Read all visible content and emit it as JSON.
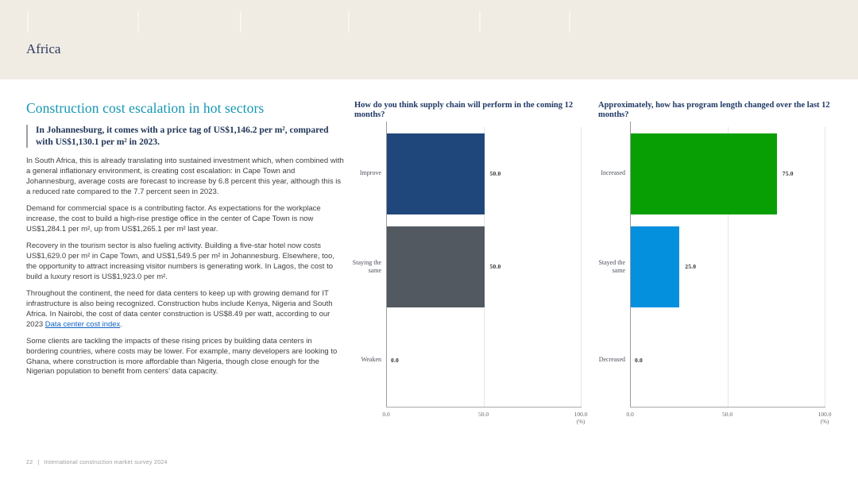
{
  "header": {
    "region_title": "Africa"
  },
  "article": {
    "title": "Construction cost escalation in hot sectors",
    "callout": "In Johannesburg, it comes with a price tag of US$1,146.2 per m², compared with US$1,130.1 per m² in 2023.",
    "p1": "In South Africa, this is already translating into sustained investment which, when combined with a general inflationary environment, is creating cost escalation: in Cape Town and Johannesburg, average costs are forecast to increase by 6.8 percent this year, although this is a reduced rate compared to the 7.7 percent seen in 2023.",
    "p2": "Demand for commercial space is a contributing factor. As expectations for the workplace increase, the cost to build a high-rise prestige office in the center of Cape Town is now US$1,284.1 per m², up from US$1,265.1 per m² last year.",
    "p3": "Recovery in the tourism sector is also fueling activity. Building a five-star hotel now costs US$1,629.0 per m² in Cape Town, and US$1,549.5 per m² in Johannesburg. Elsewhere, too, the opportunity to attract increasing visitor numbers is generating work. In Lagos, the cost to build a luxury resort is US$1,923.0 per m².",
    "p4_pre": "Throughout the continent, the need for data centers to keep up with growing demand for IT infrastructure is also being recognized. Construction hubs include Kenya, Nigeria and South Africa. In Nairobi, the cost of data center construction is US$8.49 per watt, according to our 2023 ",
    "p4_link": "Data center cost index",
    "p4_post": ".",
    "p5": "Some clients are tackling the impacts of these rising prices by building data centers in bordering countries, where costs may be lower. For example, many developers are looking to Ghana, where construction is more affordable than Nigeria, though close enough for the Nigerian population to benefit from centers’ data capacity."
  },
  "footer": {
    "page_number": "22",
    "divider": "|",
    "document_title": "International construction market survey 2024"
  },
  "colors": {
    "header_background": "#f0ebe3",
    "accent_teal": "#1597b1",
    "navy_text": "#1f3864",
    "link_blue": "#0f62c5",
    "bar_navy": "#20477b",
    "bar_gray": "#535960",
    "bar_green": "#089f04",
    "bar_blue": "#0590de"
  },
  "chart_data": [
    {
      "type": "bar",
      "orientation": "horizontal",
      "title": "How do you think supply chain will perform in the coming 12 months?",
      "categories": [
        "Improve",
        "Staying the same",
        "Weaken"
      ],
      "values": [
        50.0,
        50.0,
        0.0
      ],
      "bar_colors": [
        "#20477b",
        "#535960",
        "#20477b"
      ],
      "xlim": [
        0,
        100
      ],
      "x_ticks": [
        0,
        50,
        100
      ],
      "x_tick_labels": [
        "0.0",
        "50.0",
        "100.0"
      ],
      "x_unit": "(%)",
      "value_label_decimals": 1,
      "grid": "vertical",
      "legend": "none"
    },
    {
      "type": "bar",
      "orientation": "horizontal",
      "title": "Approximately, how has program length changed over the last 12 months?",
      "categories": [
        "Increased",
        "Stayed the same",
        "Decreased"
      ],
      "values": [
        75.0,
        25.0,
        0.0
      ],
      "bar_colors": [
        "#089f04",
        "#0590de",
        "#089f04"
      ],
      "xlim": [
        0,
        100
      ],
      "x_ticks": [
        0,
        50,
        100
      ],
      "x_tick_labels": [
        "0.0",
        "50.0",
        "100.0"
      ],
      "x_unit": "(%)",
      "value_label_decimals": 1,
      "grid": "vertical",
      "legend": "none"
    }
  ]
}
